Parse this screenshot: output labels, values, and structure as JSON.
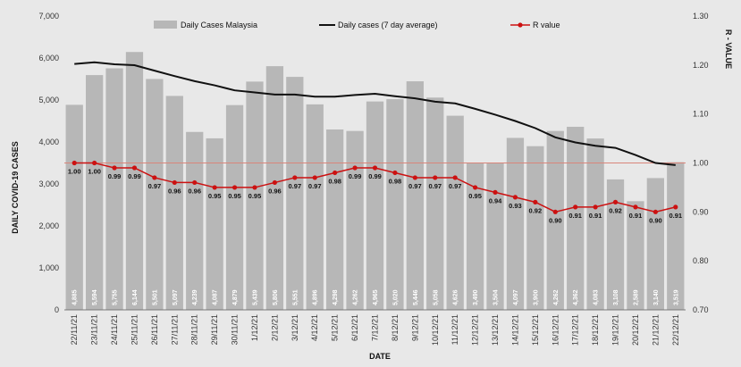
{
  "chart_data": {
    "type": "bar",
    "title": "",
    "xlabel": "DATE",
    "ylabel": "DAILY COVID-19 CASES",
    "y2label": "R - VALUE",
    "ylim": [
      0,
      7000
    ],
    "y2lim": [
      0.7,
      1.3
    ],
    "yticks": [
      "0",
      "1,000",
      "2,000",
      "3,000",
      "4,000",
      "5,000",
      "6,000",
      "7,000"
    ],
    "y2ticks": [
      "0.70",
      "0.80",
      "0.90",
      "1.00",
      "1.10",
      "1.20",
      "1.30"
    ],
    "grid": false,
    "legend_position": "top",
    "categories": [
      "22/11/21",
      "23/11/21",
      "24/11/21",
      "25/11/21",
      "26/11/21",
      "27/11/21",
      "28/11/21",
      "29/11/21",
      "30/11/21",
      "1/12/21",
      "2/12/21",
      "3/12/21",
      "4/12/21",
      "5/12/21",
      "6/12/21",
      "7/12/21",
      "8/12/21",
      "9/12/21",
      "10/12/21",
      "11/12/21",
      "12/12/21",
      "13/12/21",
      "14/12/21",
      "15/12/21",
      "16/12/21",
      "17/12/21",
      "18/12/21",
      "19/12/21",
      "20/12/21",
      "21/12/21",
      "22/12/21"
    ],
    "series": [
      {
        "name": "Daily Cases Malaysia",
        "kind": "bar",
        "axis": "left",
        "color": "#b7b7b7",
        "values": [
          4885,
          5594,
          5755,
          6144,
          5501,
          5097,
          4239,
          4087,
          4879,
          5439,
          5806,
          5551,
          4896,
          4298,
          4262,
          4965,
          5020,
          5446,
          5058,
          4626,
          3490,
          3504,
          4097,
          3900,
          4262,
          4362,
          4083,
          3108,
          2589,
          3140,
          3519
        ],
        "labels": [
          "4,885",
          "5,594",
          "5,755",
          "6,144",
          "5,501",
          "5,097",
          "4,239",
          "4,087",
          "4,879",
          "5,439",
          "5,806",
          "5,551",
          "4,896",
          "4,298",
          "4,262",
          "4,965",
          "5,020",
          "5,446",
          "5,058",
          "4,626",
          "3,490",
          "3,504",
          "4,097",
          "3,900",
          "4,262",
          "4,362",
          "4,083",
          "3,108",
          "2,589",
          "3,140",
          "3,519"
        ]
      },
      {
        "name": "Daily cases (7 day average)",
        "kind": "line",
        "axis": "left",
        "color": "#111111",
        "values": [
          5860,
          5900,
          5850,
          5830,
          5700,
          5570,
          5450,
          5350,
          5230,
          5180,
          5130,
          5130,
          5080,
          5080,
          5120,
          5150,
          5090,
          5040,
          4960,
          4920,
          4790,
          4650,
          4500,
          4330,
          4110,
          3990,
          3910,
          3860,
          3690,
          3500,
          3450
        ]
      },
      {
        "name": "R value",
        "kind": "line",
        "axis": "right",
        "color": "#cc1111",
        "values": [
          1.0,
          1.0,
          0.99,
          0.99,
          0.97,
          0.96,
          0.96,
          0.95,
          0.95,
          0.95,
          0.96,
          0.97,
          0.97,
          0.98,
          0.99,
          0.99,
          0.98,
          0.97,
          0.97,
          0.97,
          0.95,
          0.94,
          0.93,
          0.92,
          0.9,
          0.91,
          0.91,
          0.92,
          0.91,
          0.9,
          0.91
        ],
        "labels": [
          "1.00",
          "1.00",
          "0.99",
          "0.99",
          "0.97",
          "0.96",
          "0.96",
          "0.95",
          "0.95",
          "0.95",
          "0.96",
          "0.97",
          "0.97",
          "0.98",
          "0.99",
          "0.99",
          "0.98",
          "0.97",
          "0.97",
          "0.97",
          "0.95",
          "0.94",
          "0.93",
          "0.92",
          "0.90",
          "0.91",
          "0.91",
          "0.92",
          "0.91",
          "0.90",
          "0.91"
        ]
      }
    ],
    "reference_line": {
      "axis": "right",
      "value": 1.0,
      "color": "#d9857a"
    }
  }
}
